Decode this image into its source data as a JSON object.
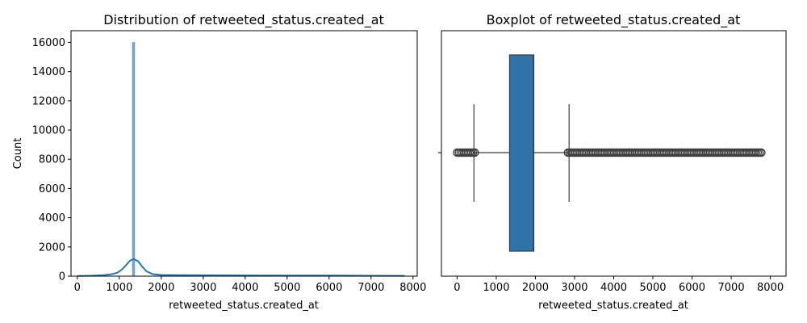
{
  "chart_data": [
    {
      "type": "histogram",
      "title": "Distribution of retweeted_status.created_at",
      "xlabel": "retweeted_status.created_at",
      "ylabel": "Count",
      "xlim": [
        -150,
        8100
      ],
      "ylim": [
        0,
        16800
      ],
      "xticks": [
        0,
        1000,
        2000,
        3000,
        4000,
        5000,
        6000,
        7000,
        8000
      ],
      "yticks": [
        0,
        2000,
        4000,
        6000,
        8000,
        10000,
        12000,
        14000,
        16000
      ],
      "colors": {
        "bars": "#7ea4c3",
        "kde": "#1f77b4"
      },
      "bars": [
        {
          "x": 1340,
          "value": 16000
        }
      ],
      "kde": {
        "x": [
          0,
          300,
          600,
          800,
          950,
          1050,
          1150,
          1250,
          1340,
          1450,
          1550,
          1650,
          1800,
          2000,
          2400,
          3000,
          4000,
          5000,
          6000,
          7000,
          7800
        ],
        "y": [
          10,
          25,
          60,
          120,
          230,
          420,
          720,
          1050,
          1180,
          1020,
          640,
          330,
          140,
          85,
          70,
          60,
          50,
          45,
          38,
          30,
          20
        ]
      }
    },
    {
      "type": "boxplot",
      "title": "Boxplot of retweeted_status.created_at",
      "xlabel": "retweeted_status.created_at",
      "xlim": [
        -400,
        8400
      ],
      "xticks": [
        0,
        1000,
        2000,
        3000,
        4000,
        5000,
        6000,
        7000,
        8000
      ],
      "colors": {
        "box": "#2e74a8",
        "lines": "#3d3d3d",
        "fliers": "#3d3d3d"
      },
      "stats": {
        "whislo": 430,
        "q1": 1340,
        "med": 1950,
        "q3": 1960,
        "whishi": 2860
      },
      "fliers_ranges": [
        [
          0,
          480
        ],
        [
          2830,
          7800
        ]
      ]
    }
  ]
}
